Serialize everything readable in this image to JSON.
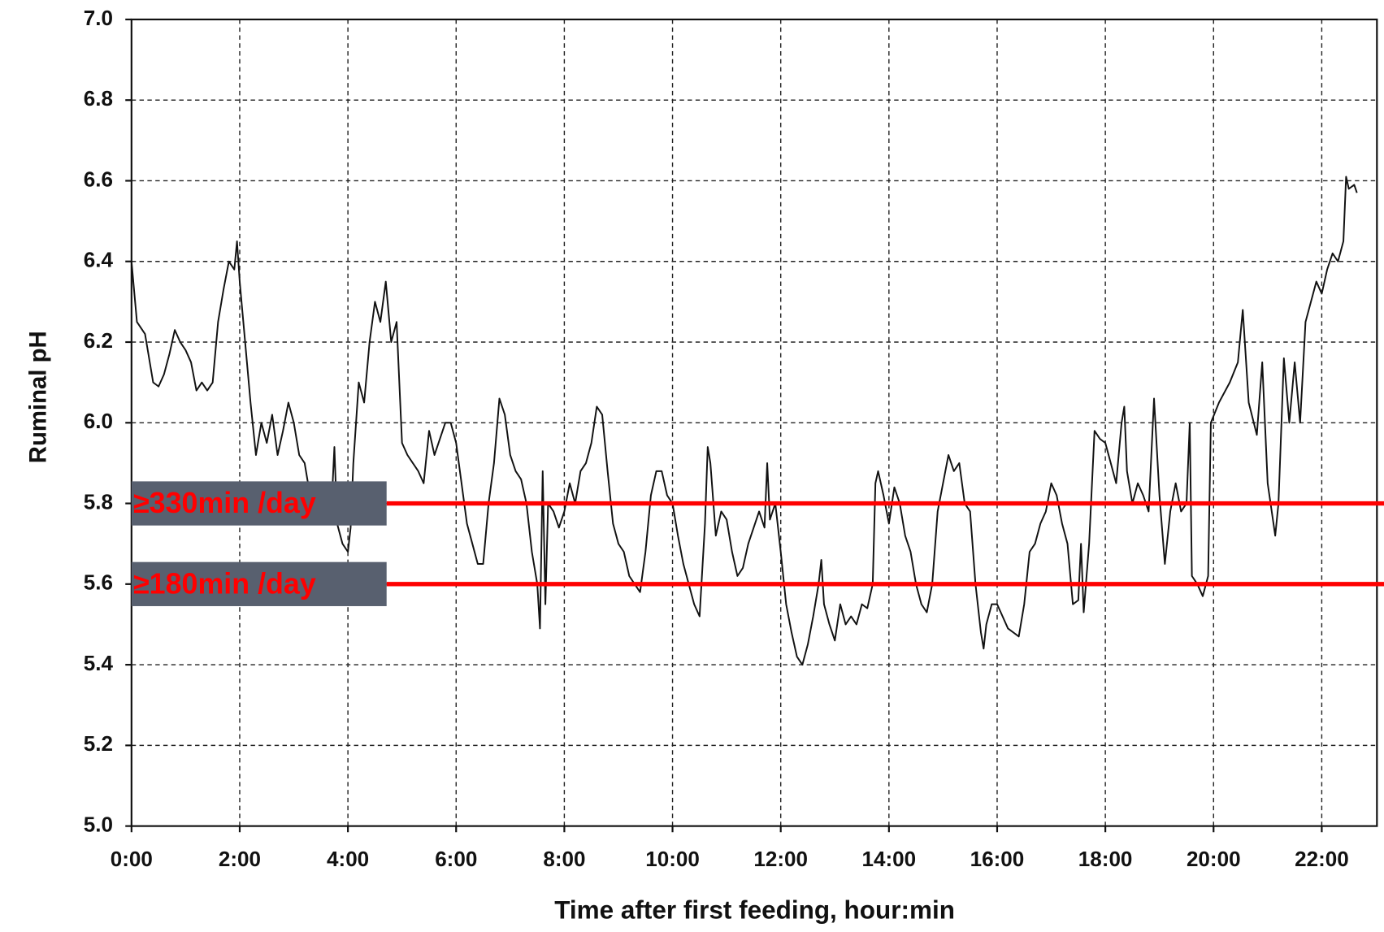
{
  "chart_data": {
    "type": "line",
    "xlabel": "Time after first feeding, hour:min",
    "ylabel": "Ruminal pH",
    "xlim": [
      0,
      23.02
    ],
    "ylim": [
      5.0,
      7.0
    ],
    "xticks": [
      {
        "value": 0,
        "label": "0:00"
      },
      {
        "value": 2,
        "label": "2:00"
      },
      {
        "value": 4,
        "label": "4:00"
      },
      {
        "value": 6,
        "label": "6:00"
      },
      {
        "value": 8,
        "label": "8:00"
      },
      {
        "value": 10,
        "label": "10:00"
      },
      {
        "value": 12,
        "label": "12:00"
      },
      {
        "value": 14,
        "label": "14:00"
      },
      {
        "value": 16,
        "label": "16:00"
      },
      {
        "value": 18,
        "label": "18:00"
      },
      {
        "value": 20,
        "label": "20:00"
      },
      {
        "value": 22,
        "label": "22:00"
      }
    ],
    "yticks": [
      {
        "value": 5,
        "label": "5.0"
      },
      5.2,
      5.4,
      5.6,
      5.8,
      {
        "value": 6,
        "label": "6.0"
      },
      6.2,
      6.4,
      6.6,
      6.8,
      {
        "value": 7,
        "label": "7.0"
      }
    ],
    "grid": true,
    "series": [
      {
        "color": "#111111",
        "x": [
          0,
          0.1,
          0.25,
          0.4,
          0.5,
          0.6,
          0.7,
          0.8,
          0.9,
          1.0,
          1.1,
          1.2,
          1.3,
          1.4,
          1.5,
          1.6,
          1.7,
          1.8,
          1.9,
          1.95,
          2.0,
          2.1,
          2.2,
          2.3,
          2.4,
          2.5,
          2.6,
          2.7,
          2.8,
          2.9,
          3.0,
          3.1,
          3.2,
          3.3,
          3.4,
          3.5,
          3.6,
          3.7,
          3.75,
          3.8,
          3.9,
          4.0,
          4.05,
          4.1,
          4.2,
          4.3,
          4.4,
          4.5,
          4.6,
          4.7,
          4.8,
          4.9,
          5.0,
          5.1,
          5.2,
          5.3,
          5.4,
          5.5,
          5.6,
          5.7,
          5.8,
          5.9,
          6.0,
          6.1,
          6.2,
          6.3,
          6.4,
          6.5,
          6.6,
          6.7,
          6.8,
          6.9,
          7.0,
          7.1,
          7.2,
          7.3,
          7.4,
          7.5,
          7.55,
          7.6,
          7.65,
          7.7,
          7.8,
          7.9,
          8.0,
          8.1,
          8.2,
          8.3,
          8.4,
          8.5,
          8.6,
          8.7,
          8.8,
          8.9,
          9.0,
          9.1,
          9.2,
          9.3,
          9.4,
          9.5,
          9.6,
          9.7,
          9.8,
          9.9,
          10.0,
          10.1,
          10.2,
          10.3,
          10.4,
          10.5,
          10.6,
          10.65,
          10.7,
          10.8,
          10.9,
          11.0,
          11.1,
          11.2,
          11.3,
          11.4,
          11.5,
          11.6,
          11.7,
          11.75,
          11.8,
          11.9,
          12.0,
          12.1,
          12.2,
          12.3,
          12.4,
          12.5,
          12.6,
          12.7,
          12.75,
          12.8,
          12.9,
          13.0,
          13.1,
          13.2,
          13.3,
          13.4,
          13.5,
          13.6,
          13.7,
          13.75,
          13.8,
          13.9,
          14.0,
          14.1,
          14.2,
          14.3,
          14.4,
          14.5,
          14.6,
          14.7,
          14.8,
          14.9,
          15.0,
          15.1,
          15.2,
          15.3,
          15.4,
          15.5,
          15.6,
          15.7,
          15.75,
          15.8,
          15.9,
          16.0,
          16.1,
          16.2,
          16.3,
          16.4,
          16.5,
          16.6,
          16.7,
          16.8,
          16.9,
          17.0,
          17.1,
          17.2,
          17.3,
          17.4,
          17.5,
          17.55,
          17.6,
          17.7,
          17.8,
          17.9,
          18.0,
          18.1,
          18.2,
          18.3,
          18.35,
          18.4,
          18.5,
          18.6,
          18.7,
          18.8,
          18.9,
          19.0,
          19.1,
          19.2,
          19.3,
          19.4,
          19.5,
          19.56,
          19.6,
          19.7,
          19.8,
          19.9,
          19.95,
          20.1,
          20.3,
          20.45,
          20.54,
          20.65,
          20.8,
          20.9,
          21.0,
          21.14,
          21.2,
          21.3,
          21.4,
          21.5,
          21.6,
          21.7,
          21.8,
          21.9,
          22.0,
          22.1,
          22.2,
          22.3,
          22.4,
          22.45,
          22.5,
          22.6,
          22.65
        ],
        "values": [
          6.4,
          6.25,
          6.22,
          6.1,
          6.09,
          6.12,
          6.17,
          6.23,
          6.2,
          6.18,
          6.15,
          6.08,
          6.1,
          6.08,
          6.1,
          6.25,
          6.33,
          6.4,
          6.38,
          6.45,
          6.35,
          6.2,
          6.05,
          5.92,
          6.0,
          5.95,
          6.02,
          5.92,
          5.98,
          6.05,
          6.0,
          5.92,
          5.9,
          5.82,
          5.85,
          5.78,
          5.76,
          5.8,
          5.94,
          5.75,
          5.7,
          5.68,
          5.74,
          5.9,
          6.1,
          6.05,
          6.2,
          6.3,
          6.25,
          6.35,
          6.2,
          6.25,
          5.95,
          5.92,
          5.9,
          5.88,
          5.85,
          5.98,
          5.92,
          5.96,
          6.0,
          6.0,
          5.95,
          5.85,
          5.75,
          5.7,
          5.65,
          5.65,
          5.8,
          5.9,
          6.06,
          6.02,
          5.92,
          5.88,
          5.86,
          5.8,
          5.68,
          5.6,
          5.49,
          5.88,
          5.55,
          5.8,
          5.78,
          5.74,
          5.78,
          5.85,
          5.8,
          5.88,
          5.9,
          5.95,
          6.04,
          6.02,
          5.88,
          5.75,
          5.7,
          5.68,
          5.62,
          5.6,
          5.58,
          5.68,
          5.82,
          5.88,
          5.88,
          5.82,
          5.8,
          5.72,
          5.65,
          5.6,
          5.55,
          5.52,
          5.75,
          5.94,
          5.9,
          5.72,
          5.78,
          5.76,
          5.68,
          5.62,
          5.64,
          5.7,
          5.74,
          5.78,
          5.74,
          5.9,
          5.76,
          5.8,
          5.68,
          5.55,
          5.48,
          5.42,
          5.4,
          5.45,
          5.52,
          5.6,
          5.66,
          5.55,
          5.5,
          5.46,
          5.55,
          5.5,
          5.52,
          5.5,
          5.55,
          5.54,
          5.6,
          5.85,
          5.88,
          5.82,
          5.75,
          5.84,
          5.8,
          5.72,
          5.68,
          5.6,
          5.55,
          5.53,
          5.6,
          5.78,
          5.85,
          5.92,
          5.88,
          5.9,
          5.8,
          5.78,
          5.6,
          5.48,
          5.44,
          5.5,
          5.55,
          5.55,
          5.52,
          5.49,
          5.48,
          5.47,
          5.55,
          5.68,
          5.7,
          5.75,
          5.78,
          5.85,
          5.82,
          5.75,
          5.7,
          5.55,
          5.56,
          5.7,
          5.53,
          5.7,
          5.98,
          5.96,
          5.95,
          5.9,
          5.85,
          6.0,
          6.04,
          5.88,
          5.8,
          5.85,
          5.82,
          5.78,
          6.06,
          5.82,
          5.65,
          5.78,
          5.85,
          5.78,
          5.8,
          6.0,
          5.62,
          5.6,
          5.57,
          5.62,
          6.0,
          6.05,
          6.1,
          6.15,
          6.28,
          6.05,
          5.97,
          6.15,
          5.85,
          5.72,
          5.8,
          6.16,
          6.0,
          6.15,
          6.0,
          6.25,
          6.3,
          6.35,
          6.32,
          6.38,
          6.42,
          6.4,
          6.45,
          6.61,
          6.58,
          6.59,
          6.57
        ]
      }
    ],
    "thresholds": [
      {
        "value": 5.8,
        "label": "≥330min /day",
        "color": "#ff0000"
      },
      {
        "value": 5.6,
        "label": "≥180min /day",
        "color": "#ff0000"
      }
    ]
  }
}
